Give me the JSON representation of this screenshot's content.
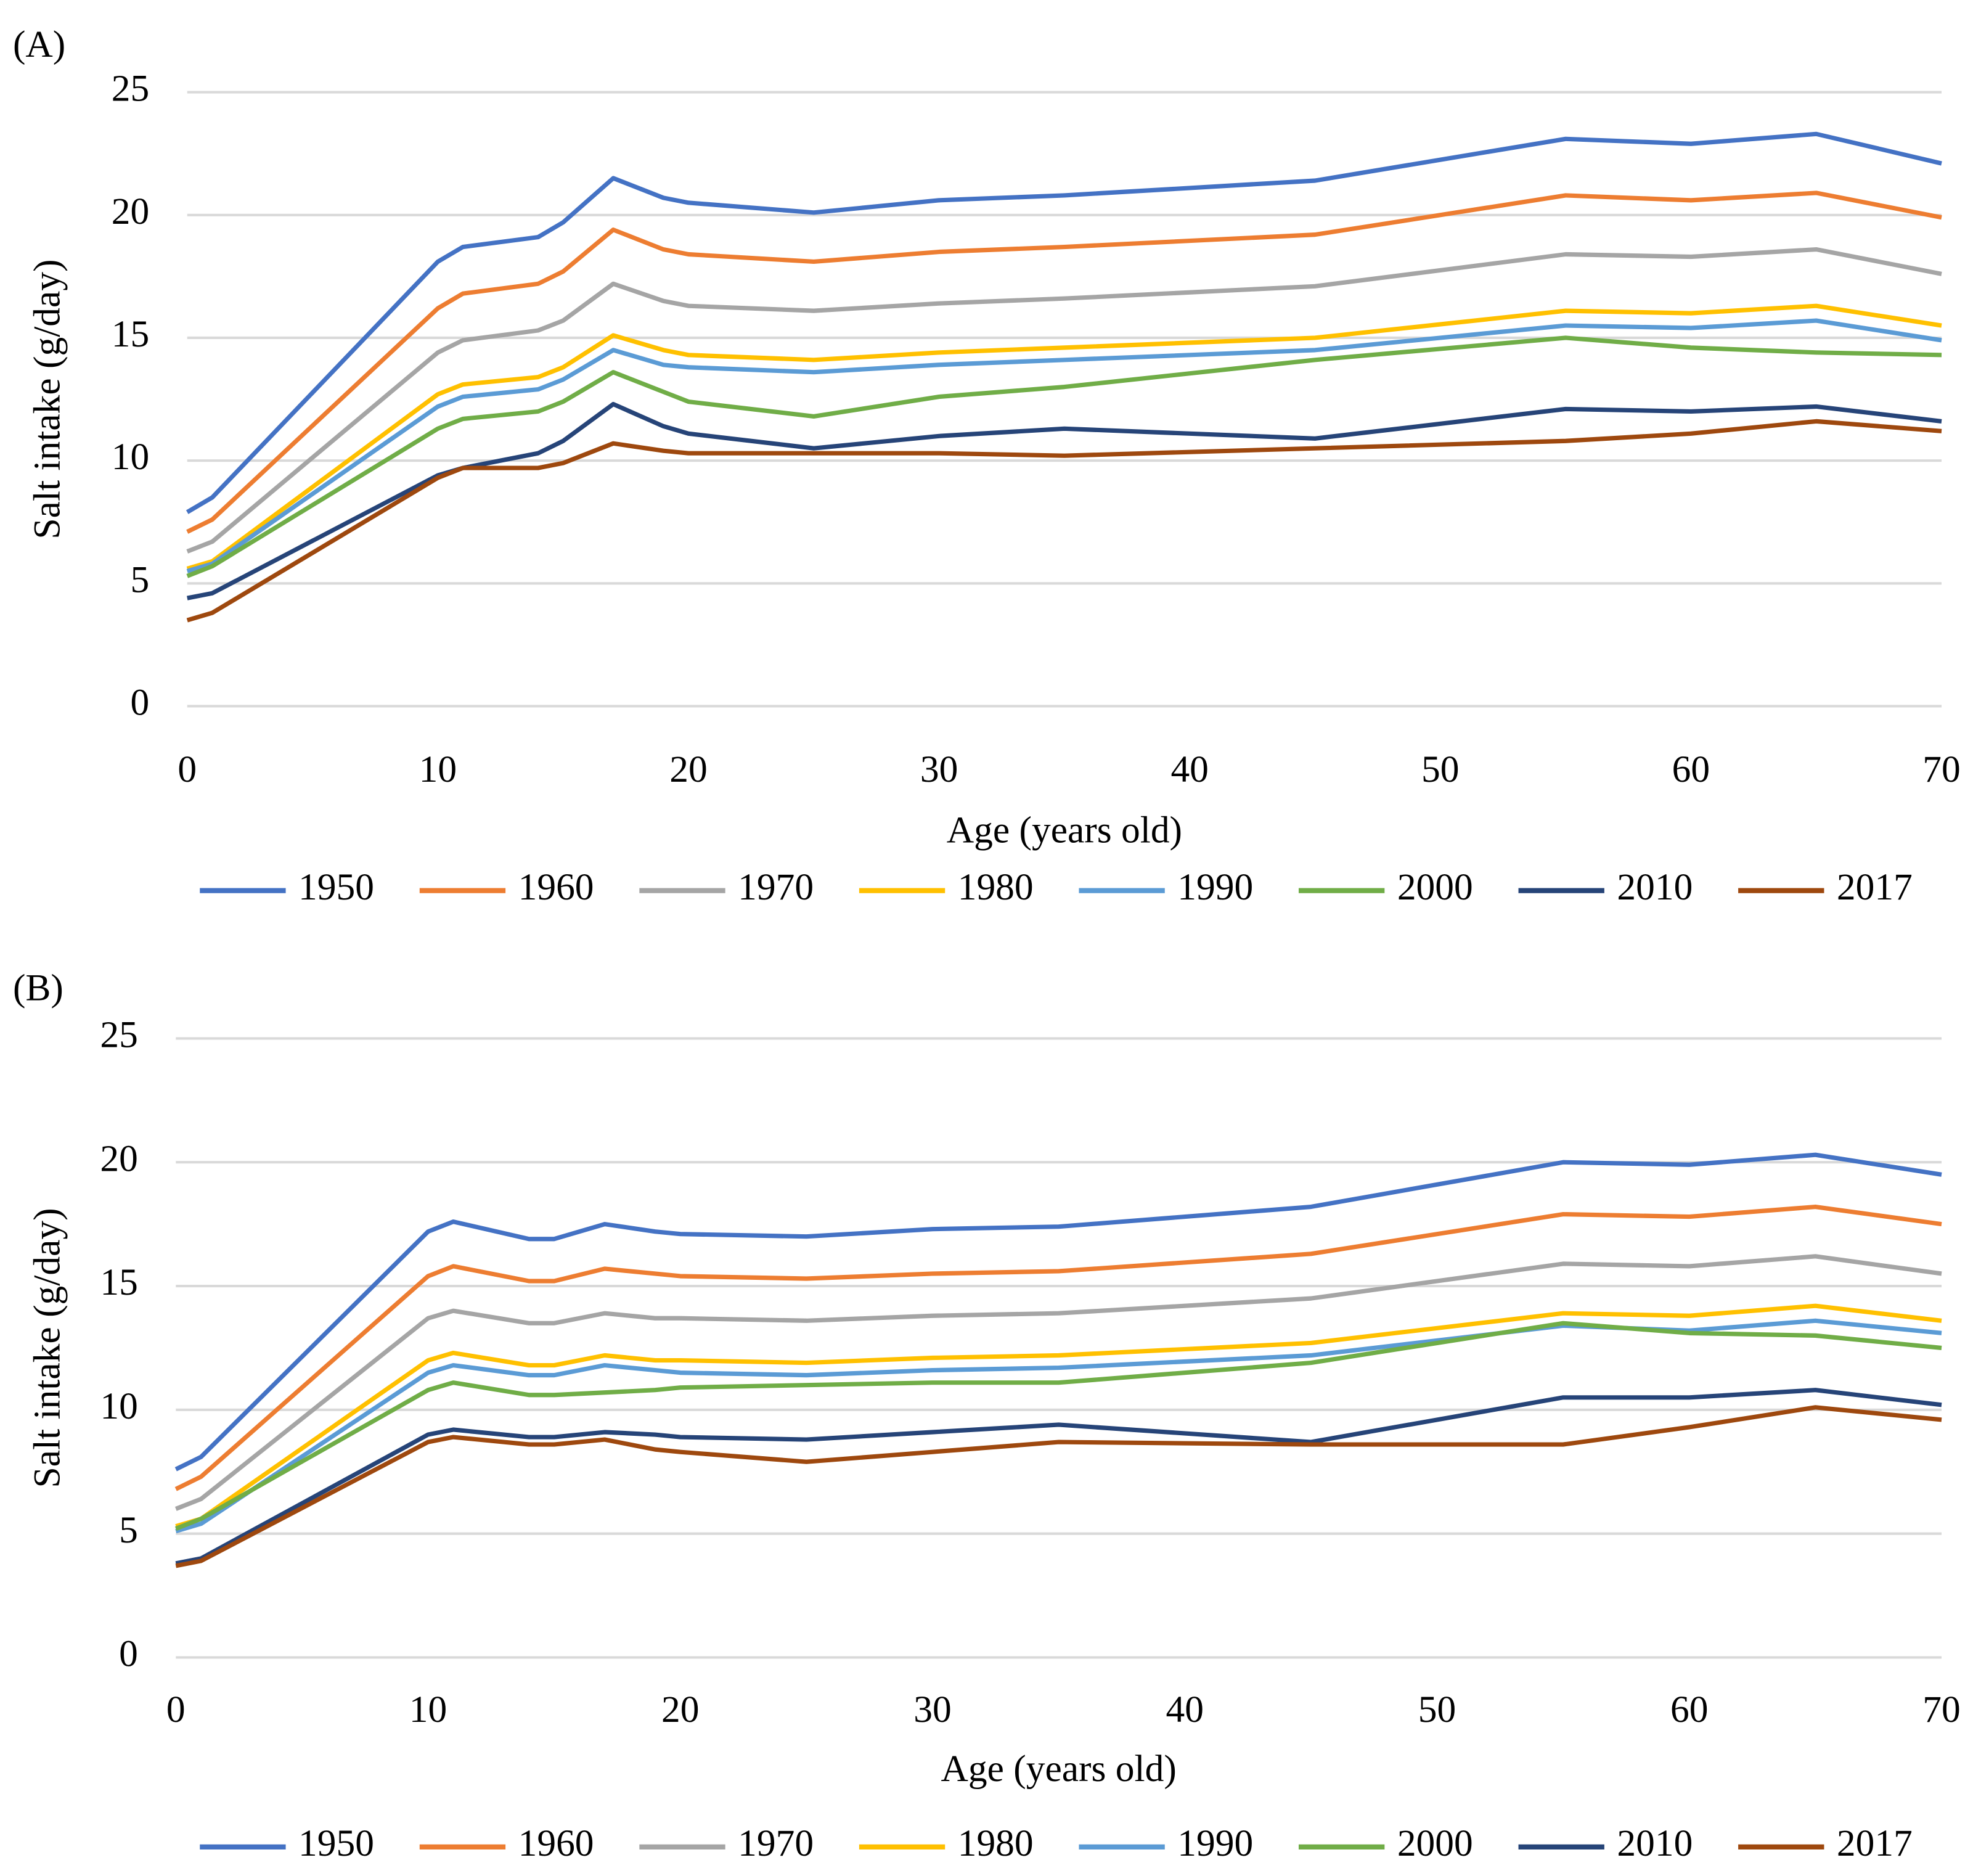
{
  "chart_data": [
    {
      "type": "line",
      "panel_label": "(A)",
      "x_label": "Age (years old)",
      "y_label": "Salt intake (g/day)",
      "x": [
        0,
        1,
        10,
        11,
        14,
        15,
        17,
        19,
        20,
        25,
        30,
        35,
        45,
        55,
        60,
        65,
        70
      ],
      "xlim": [
        0,
        70
      ],
      "xticks": [
        0,
        10,
        20,
        30,
        40,
        50,
        60,
        70
      ],
      "ylim": [
        0,
        25
      ],
      "yticks": [
        0,
        5,
        10,
        15,
        20,
        25
      ],
      "grid": true,
      "series": [
        {
          "name": "1950",
          "color": "#4472c4",
          "values": [
            7.9,
            8.5,
            18.1,
            18.7,
            19.1,
            19.7,
            21.5,
            20.7,
            20.5,
            20.1,
            20.6,
            20.8,
            21.4,
            23.1,
            22.9,
            23.3,
            22.1
          ]
        },
        {
          "name": "1960",
          "color": "#ed7d31",
          "values": [
            7.1,
            7.6,
            16.2,
            16.8,
            17.2,
            17.7,
            19.4,
            18.6,
            18.4,
            18.1,
            18.5,
            18.7,
            19.2,
            20.8,
            20.6,
            20.9,
            19.9
          ]
        },
        {
          "name": "1970",
          "color": "#a5a5a5",
          "values": [
            6.3,
            6.7,
            14.4,
            14.9,
            15.3,
            15.7,
            17.2,
            16.5,
            16.3,
            16.1,
            16.4,
            16.6,
            17.1,
            18.4,
            18.3,
            18.6,
            17.6
          ]
        },
        {
          "name": "1980",
          "color": "#ffc000",
          "values": [
            5.6,
            5.9,
            12.7,
            13.1,
            13.4,
            13.8,
            15.1,
            14.5,
            14.3,
            14.1,
            14.4,
            14.6,
            15.0,
            16.1,
            16.0,
            16.3,
            15.5
          ]
        },
        {
          "name": "1990",
          "color": "#5b9bd5",
          "values": [
            5.5,
            5.8,
            12.2,
            12.6,
            12.9,
            13.3,
            14.5,
            13.9,
            13.8,
            13.6,
            13.9,
            14.1,
            14.5,
            15.5,
            15.4,
            15.7,
            14.9
          ]
        },
        {
          "name": "2000",
          "color": "#70ad47",
          "values": [
            5.3,
            5.7,
            11.3,
            11.7,
            12.0,
            12.4,
            13.6,
            12.8,
            12.4,
            11.8,
            12.6,
            13.0,
            14.1,
            15.0,
            14.6,
            14.4,
            14.3
          ]
        },
        {
          "name": "2010",
          "color": "#264478",
          "values": [
            4.4,
            4.6,
            9.4,
            9.7,
            10.3,
            10.8,
            12.3,
            11.4,
            11.1,
            10.5,
            11.0,
            11.3,
            10.9,
            12.1,
            12.0,
            12.2,
            11.6
          ]
        },
        {
          "name": "2017",
          "color": "#9e480e",
          "values": [
            3.5,
            3.8,
            9.3,
            9.7,
            9.7,
            9.9,
            10.7,
            10.4,
            10.3,
            10.3,
            10.3,
            10.2,
            10.5,
            10.8,
            11.1,
            11.6,
            11.2
          ]
        }
      ]
    },
    {
      "type": "line",
      "panel_label": "(B)",
      "x_label": "Age (years old)",
      "y_label": "Salt intake (g/day)",
      "x": [
        0,
        1,
        10,
        11,
        14,
        15,
        17,
        19,
        20,
        25,
        30,
        35,
        45,
        55,
        60,
        65,
        70
      ],
      "xlim": [
        0,
        70
      ],
      "xticks": [
        0,
        10,
        20,
        30,
        40,
        50,
        60,
        70
      ],
      "ylim": [
        0,
        25
      ],
      "yticks": [
        0,
        5,
        10,
        15,
        20,
        25
      ],
      "grid": true,
      "series": [
        {
          "name": "1950",
          "color": "#4472c4",
          "values": [
            7.6,
            8.1,
            17.2,
            17.6,
            16.9,
            16.9,
            17.5,
            17.2,
            17.1,
            17.0,
            17.3,
            17.4,
            18.2,
            20.0,
            19.9,
            20.3,
            19.5
          ]
        },
        {
          "name": "1960",
          "color": "#ed7d31",
          "values": [
            6.8,
            7.3,
            15.4,
            15.8,
            15.2,
            15.2,
            15.7,
            15.5,
            15.4,
            15.3,
            15.5,
            15.6,
            16.3,
            17.9,
            17.8,
            18.2,
            17.5
          ]
        },
        {
          "name": "1970",
          "color": "#a5a5a5",
          "values": [
            6.0,
            6.4,
            13.7,
            14.0,
            13.5,
            13.5,
            13.9,
            13.7,
            13.7,
            13.6,
            13.8,
            13.9,
            14.5,
            15.9,
            15.8,
            16.2,
            15.5
          ]
        },
        {
          "name": "1980",
          "color": "#ffc000",
          "values": [
            5.3,
            5.6,
            12.0,
            12.3,
            11.8,
            11.8,
            12.2,
            12.0,
            12.0,
            11.9,
            12.1,
            12.2,
            12.7,
            13.9,
            13.8,
            14.2,
            13.6
          ]
        },
        {
          "name": "1990",
          "color": "#5b9bd5",
          "values": [
            5.1,
            5.4,
            11.5,
            11.8,
            11.4,
            11.4,
            11.8,
            11.6,
            11.5,
            11.4,
            11.6,
            11.7,
            12.2,
            13.4,
            13.2,
            13.6,
            13.1
          ]
        },
        {
          "name": "2000",
          "color": "#70ad47",
          "values": [
            5.2,
            5.6,
            10.8,
            11.1,
            10.6,
            10.6,
            10.7,
            10.8,
            10.9,
            11.0,
            11.1,
            11.1,
            11.9,
            13.5,
            13.1,
            13.0,
            12.5
          ]
        },
        {
          "name": "2010",
          "color": "#264478",
          "values": [
            3.8,
            4.0,
            9.0,
            9.2,
            8.9,
            8.9,
            9.1,
            9.0,
            8.9,
            8.8,
            9.1,
            9.4,
            8.7,
            10.5,
            10.5,
            10.8,
            10.2
          ]
        },
        {
          "name": "2017",
          "color": "#9e480e",
          "values": [
            3.7,
            3.9,
            8.7,
            8.9,
            8.6,
            8.6,
            8.8,
            8.4,
            8.3,
            7.9,
            8.3,
            8.7,
            8.6,
            8.6,
            9.3,
            10.1,
            9.6
          ]
        }
      ]
    }
  ]
}
